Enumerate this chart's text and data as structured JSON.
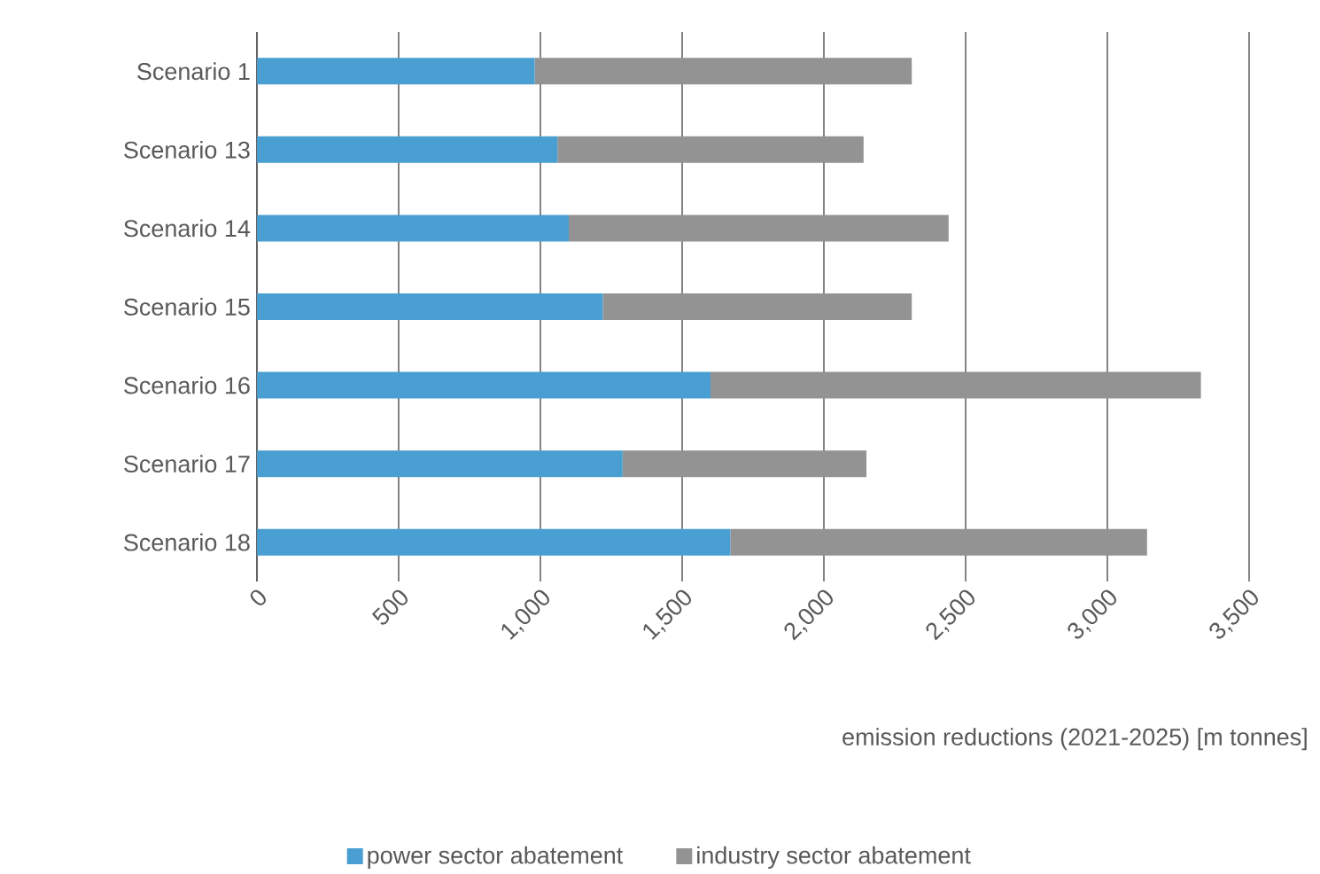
{
  "chart_data": {
    "type": "bar",
    "orientation": "horizontal",
    "stacked": true,
    "xlabel": "emission reductions (2021-2025) [m tonnes]",
    "categories": [
      "Scenario 1",
      "Scenario 13",
      "Scenario 14",
      "Scenario 15",
      "Scenario 16",
      "Scenario 17",
      "Scenario 18"
    ],
    "series": [
      {
        "name": "power sector abatement",
        "color": "#4a9fd2",
        "values": [
          980,
          1060,
          1100,
          1220,
          1600,
          1290,
          1670
        ]
      },
      {
        "name": "industry sector abatement",
        "color": "#939393",
        "values": [
          1330,
          1080,
          1340,
          1090,
          1730,
          860,
          1470
        ]
      }
    ],
    "xlim": [
      0,
      3500
    ],
    "xticks": [
      0,
      500,
      {
        "value": 1000,
        "label": "1,000"
      },
      {
        "value": 1500,
        "label": "1,500"
      },
      {
        "value": 2000,
        "label": "2,000"
      },
      {
        "value": 2500,
        "label": "2,500"
      },
      {
        "value": 3000,
        "label": "3,000"
      },
      {
        "value": 3500,
        "label": "3,500"
      }
    ],
    "grid": "x",
    "legend": "bottom"
  }
}
